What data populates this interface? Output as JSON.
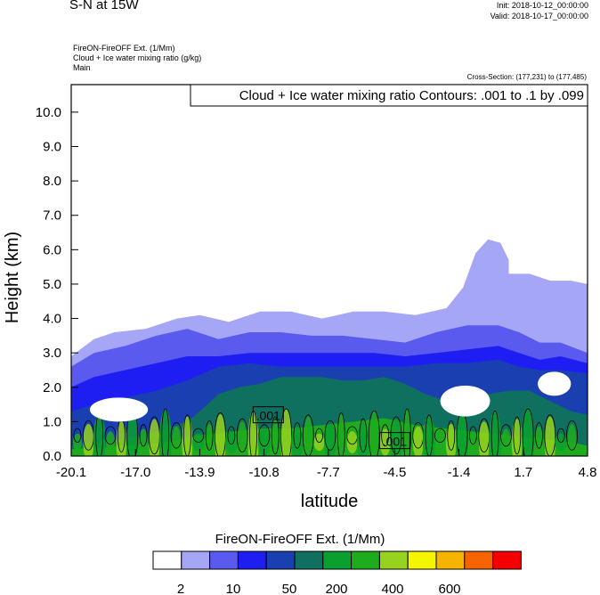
{
  "header": {
    "title": "S-N at 15W",
    "init": "Init: 2018-10-12_00:00:00",
    "valid": "Valid: 2018-10-17_00:00:00",
    "var_line1": "FireON-FireOFF Ext.   (1/Mm)",
    "var_line2": "Cloud + Ice water mixing ratio   (g/kg)",
    "var_line3": "Main",
    "cross_section": "Cross-Section: (177,231) to (177,485)"
  },
  "chart_data": {
    "type": "heatmap",
    "title": "Cloud + Ice water mixing ratio Contours: .001 to .1 by .099",
    "xlabel": "latitude",
    "ylabel": "Height (km)",
    "x_ticks": [
      "-20.1",
      "-17.0",
      "-13.9",
      "-10.8",
      "-7.7",
      "-4.5",
      "-1.4",
      "1.7",
      "4.8"
    ],
    "x_tick_values": [
      -20.1,
      -17.0,
      -13.9,
      -10.8,
      -7.7,
      -4.5,
      -1.4,
      1.7,
      4.8
    ],
    "y_ticks": [
      "0.0",
      "1.0",
      "2.0",
      "3.0",
      "4.0",
      "5.0",
      "6.0",
      "7.0",
      "8.0",
      "9.0",
      "10.0"
    ],
    "y_tick_values": [
      0,
      1,
      2,
      3,
      4,
      5,
      6,
      7,
      8,
      9,
      10
    ],
    "xlim": [
      -20.1,
      4.8
    ],
    "ylim": [
      0,
      10.8
    ],
    "contour_labels": [
      {
        "text": ".001",
        "x": -10.6,
        "y": 1.2
      },
      {
        "text": ".001",
        "x": -4.5,
        "y": 0.45
      }
    ],
    "fill_levels": [
      {
        "threshold": 2,
        "color": "#a6a6f7",
        "top": [
          [
            -20.1,
            2.9
          ],
          [
            -19.0,
            3.4
          ],
          [
            -18.0,
            3.6
          ],
          [
            -16.5,
            3.7
          ],
          [
            -15.0,
            4.0
          ],
          [
            -13.9,
            4.1
          ],
          [
            -12.5,
            3.9
          ],
          [
            -11.0,
            4.2
          ],
          [
            -9.5,
            4.2
          ],
          [
            -8.0,
            4.0
          ],
          [
            -6.5,
            4.2
          ],
          [
            -5.0,
            4.2
          ],
          [
            -3.5,
            4.1
          ],
          [
            -2.0,
            4.3
          ],
          [
            -1.2,
            4.9
          ],
          [
            -0.6,
            5.9
          ],
          [
            0.0,
            6.3
          ],
          [
            0.6,
            6.2
          ],
          [
            1.0,
            5.7
          ],
          [
            1.0,
            5.3
          ],
          [
            2.0,
            5.3
          ],
          [
            3.0,
            5.1
          ],
          [
            4.0,
            5.1
          ],
          [
            4.8,
            5.0
          ]
        ]
      },
      {
        "threshold": 10,
        "color": "#5a5aef",
        "top": [
          [
            -20.1,
            2.6
          ],
          [
            -19.0,
            3.0
          ],
          [
            -17.5,
            3.2
          ],
          [
            -16.0,
            3.5
          ],
          [
            -14.5,
            3.7
          ],
          [
            -13.0,
            3.4
          ],
          [
            -11.5,
            3.6
          ],
          [
            -10.0,
            3.6
          ],
          [
            -8.5,
            3.5
          ],
          [
            -7.0,
            3.5
          ],
          [
            -5.5,
            3.4
          ],
          [
            -4.0,
            3.3
          ],
          [
            -2.5,
            3.6
          ],
          [
            -1.0,
            3.8
          ],
          [
            0.5,
            3.8
          ],
          [
            1.5,
            3.6
          ],
          [
            2.5,
            3.3
          ],
          [
            3.5,
            3.3
          ],
          [
            4.8,
            3.0
          ]
        ]
      },
      {
        "threshold": 50,
        "color": "#1e1ef2",
        "top": [
          [
            -20.1,
            2.0
          ],
          [
            -19.0,
            2.3
          ],
          [
            -17.5,
            2.5
          ],
          [
            -16.0,
            2.7
          ],
          [
            -14.5,
            2.9
          ],
          [
            -13.0,
            2.9
          ],
          [
            -11.5,
            3.0
          ],
          [
            -10.0,
            3.0
          ],
          [
            -8.5,
            3.0
          ],
          [
            -7.0,
            3.0
          ],
          [
            -5.5,
            3.0
          ],
          [
            -4.0,
            2.9
          ],
          [
            -2.5,
            3.0
          ],
          [
            -1.0,
            3.1
          ],
          [
            0.5,
            3.2
          ],
          [
            1.5,
            3.0
          ],
          [
            2.5,
            2.8
          ],
          [
            3.5,
            2.9
          ],
          [
            4.8,
            2.7
          ]
        ]
      },
      {
        "threshold": 100,
        "color": "#1a3fb0",
        "top": [
          [
            -20.1,
            1.3
          ],
          [
            -19.0,
            1.5
          ],
          [
            -17.5,
            1.7
          ],
          [
            -16.0,
            1.9
          ],
          [
            -14.5,
            2.2
          ],
          [
            -13.0,
            2.6
          ],
          [
            -11.5,
            2.7
          ],
          [
            -10.0,
            2.6
          ],
          [
            -8.5,
            2.6
          ],
          [
            -7.0,
            2.6
          ],
          [
            -5.5,
            2.6
          ],
          [
            -4.0,
            2.6
          ],
          [
            -2.5,
            2.7
          ],
          [
            -1.0,
            2.7
          ],
          [
            0.5,
            2.8
          ],
          [
            1.5,
            2.6
          ],
          [
            2.5,
            2.5
          ],
          [
            3.5,
            2.5
          ],
          [
            4.8,
            2.4
          ]
        ]
      },
      {
        "threshold": 200,
        "color": "#0f7060",
        "top": [
          [
            -20.1,
            0.3
          ],
          [
            -19.0,
            0.4
          ],
          [
            -17.5,
            0.5
          ],
          [
            -16.0,
            0.7
          ],
          [
            -14.5,
            1.0
          ],
          [
            -13.9,
            1.3
          ],
          [
            -13.0,
            1.8
          ],
          [
            -12.0,
            2.0
          ],
          [
            -11.0,
            2.1
          ],
          [
            -10.0,
            2.3
          ],
          [
            -9.0,
            2.3
          ],
          [
            -8.0,
            2.3
          ],
          [
            -7.0,
            2.2
          ],
          [
            -6.0,
            2.2
          ],
          [
            -5.0,
            2.3
          ],
          [
            -4.0,
            2.1
          ],
          [
            -3.0,
            1.8
          ],
          [
            -2.0,
            1.6
          ],
          [
            -1.0,
            1.6
          ],
          [
            0.0,
            1.8
          ],
          [
            1.0,
            1.9
          ],
          [
            2.0,
            1.9
          ],
          [
            3.0,
            1.6
          ],
          [
            4.0,
            1.3
          ],
          [
            4.8,
            1.2
          ]
        ]
      },
      {
        "threshold": 400,
        "color": "#1eab1e",
        "top": [
          [
            -20.1,
            0.2
          ],
          [
            -17.5,
            0.3
          ],
          [
            -15.5,
            0.4
          ],
          [
            -14.0,
            0.6
          ],
          [
            -12.5,
            0.7
          ],
          [
            -11.0,
            0.8
          ],
          [
            -9.5,
            0.8
          ],
          [
            -8.0,
            0.9
          ],
          [
            -6.5,
            1.0
          ],
          [
            -5.0,
            1.1
          ],
          [
            -3.5,
            0.9
          ],
          [
            -2.0,
            0.8
          ],
          [
            -0.5,
            0.7
          ],
          [
            1.0,
            0.6
          ],
          [
            2.5,
            0.5
          ],
          [
            4.0,
            0.4
          ],
          [
            4.8,
            0.3
          ]
        ]
      }
    ],
    "white_gaps": [
      {
        "center": [
          -17.8,
          1.35
        ],
        "rx": 1.4,
        "ry": 0.35
      },
      {
        "center": [
          -1.1,
          1.6
        ],
        "rx": 1.2,
        "ry": 0.45
      },
      {
        "center": [
          3.2,
          2.1
        ],
        "rx": 0.8,
        "ry": 0.35
      }
    ]
  },
  "colorbar": {
    "title": "FireON-FireOFF Ext.  (1/Mm)",
    "colors": [
      "#ffffff",
      "#a6a6f7",
      "#5a5aef",
      "#1e1ef2",
      "#1a3fb0",
      "#0f7060",
      "#0aa030",
      "#1eab1e",
      "#96d21e",
      "#f5f500",
      "#f5b400",
      "#f56400",
      "#f50000"
    ],
    "labels": [
      "2",
      "10",
      "50",
      "200",
      "400",
      "600"
    ]
  }
}
